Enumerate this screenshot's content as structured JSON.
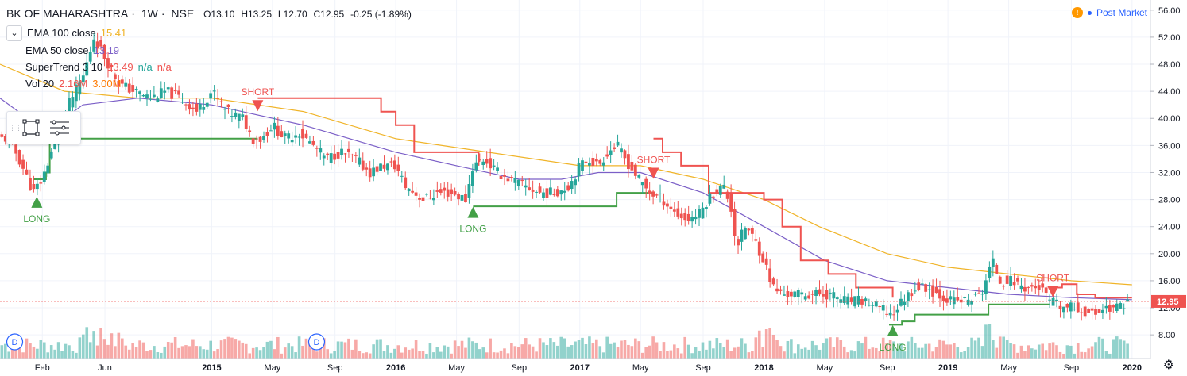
{
  "header": {
    "symbol": "BK OF MAHARASHTRA",
    "interval": "1W",
    "exchange": "NSE",
    "open": "O13.10",
    "high": "H13.25",
    "low": "L12.70",
    "close": "C12.95",
    "change": "-0.25 (-1.89%)"
  },
  "indicators": [
    {
      "name": "EMA 100 close",
      "value": "15.41",
      "color": "#f0b429"
    },
    {
      "name": "EMA 50 close",
      "value": "13.19",
      "color": "#7b5fc7"
    },
    {
      "name": "SuperTrend 3 10",
      "value": "13.49",
      "extra1": "n/a",
      "extra2": "n/a",
      "value_color": "#ef5350",
      "extra1_color": "#26a69a",
      "extra2_color": "#ef5350"
    },
    {
      "name": "Vol 20",
      "value": "2.16M",
      "extra1": "3.00M",
      "value_color": "#ef5350",
      "extra1_color": "#ff7a00"
    }
  ],
  "post_market": {
    "badge": "!",
    "label": "Post Market"
  },
  "price_tag": {
    "label": "12.95"
  },
  "icons": {
    "collapse": "chevron-down-icon",
    "rect_tool": "rectangle-icon",
    "lines_tool": "lines-icon",
    "settings": "gear-icon",
    "dividend": "dividend-icon"
  },
  "colors": {
    "up": "#26a69a",
    "down": "#ef5350",
    "ema100": "#f0b429",
    "ema50": "#7b5fc7",
    "supertrend_down": "#ef5350",
    "supertrend_up": "#43a047",
    "price_line": "#ef5350"
  },
  "chart_data": {
    "type": "candlestick",
    "y_axis_ticks": [
      "56.00",
      "52.00",
      "48.00",
      "44.00",
      "40.00",
      "36.00",
      "32.00",
      "28.00",
      "24.00",
      "20.00",
      "16.00",
      "12.00",
      "8.00"
    ],
    "y_axis_values": [
      56,
      52,
      48,
      44,
      40,
      36,
      32,
      28,
      24,
      20,
      16,
      12,
      8
    ],
    "ylim": [
      4.5,
      57.5
    ],
    "x_axis_labels": [
      "Feb",
      "Jun",
      "2015",
      "May",
      "Sep",
      "2016",
      "May",
      "Sep",
      "2017",
      "May",
      "Sep",
      "2018",
      "May",
      "Sep",
      "2019",
      "May",
      "Sep",
      "2020"
    ],
    "x_axis_times": [
      2014.08,
      2014.42,
      2015.0,
      2015.33,
      2015.67,
      2016.0,
      2016.33,
      2016.67,
      2017.0,
      2017.33,
      2017.67,
      2018.0,
      2018.33,
      2018.67,
      2019.0,
      2019.33,
      2019.67,
      2020.0
    ],
    "xlim": [
      2013.85,
      2020.1
    ],
    "close_path": [
      [
        2013.9,
        37
      ],
      [
        2013.97,
        33
      ],
      [
        2014.03,
        29
      ],
      [
        2014.08,
        31
      ],
      [
        2014.14,
        36
      ],
      [
        2014.22,
        42
      ],
      [
        2014.3,
        46
      ],
      [
        2014.36,
        52
      ],
      [
        2014.42,
        49
      ],
      [
        2014.5,
        45
      ],
      [
        2014.58,
        44
      ],
      [
        2014.67,
        43
      ],
      [
        2014.75,
        44
      ],
      [
        2014.83,
        43
      ],
      [
        2014.92,
        41
      ],
      [
        2015.0,
        44
      ],
      [
        2015.08,
        41
      ],
      [
        2015.17,
        40
      ],
      [
        2015.22,
        37
      ],
      [
        2015.27,
        37
      ],
      [
        2015.33,
        39
      ],
      [
        2015.4,
        37
      ],
      [
        2015.47,
        38
      ],
      [
        2015.55,
        36
      ],
      [
        2015.62,
        34
      ],
      [
        2015.7,
        35
      ],
      [
        2015.78,
        34
      ],
      [
        2015.86,
        32
      ],
      [
        2015.93,
        33
      ],
      [
        2016.0,
        33
      ],
      [
        2016.05,
        30
      ],
      [
        2016.1,
        29
      ],
      [
        2016.15,
        28
      ],
      [
        2016.22,
        29
      ],
      [
        2016.3,
        29
      ],
      [
        2016.38,
        28
      ],
      [
        2016.42,
        33
      ],
      [
        2016.48,
        34
      ],
      [
        2016.55,
        32
      ],
      [
        2016.62,
        31
      ],
      [
        2016.7,
        30
      ],
      [
        2016.78,
        29
      ],
      [
        2016.86,
        29
      ],
      [
        2016.94,
        30
      ],
      [
        2017.0,
        33
      ],
      [
        2017.05,
        34
      ],
      [
        2017.1,
        33
      ],
      [
        2017.15,
        35
      ],
      [
        2017.2,
        36
      ],
      [
        2017.27,
        33
      ],
      [
        2017.32,
        31
      ],
      [
        2017.38,
        29
      ],
      [
        2017.45,
        28
      ],
      [
        2017.52,
        26
      ],
      [
        2017.58,
        25
      ],
      [
        2017.65,
        26
      ],
      [
        2017.72,
        29
      ],
      [
        2017.78,
        30
      ],
      [
        2017.82,
        27
      ],
      [
        2017.85,
        21
      ],
      [
        2017.9,
        24
      ],
      [
        2017.95,
        22
      ],
      [
        2018.0,
        19
      ],
      [
        2018.05,
        15
      ],
      [
        2018.1,
        14
      ],
      [
        2018.18,
        14
      ],
      [
        2018.27,
        14
      ],
      [
        2018.35,
        14
      ],
      [
        2018.45,
        13
      ],
      [
        2018.55,
        13
      ],
      [
        2018.62,
        12
      ],
      [
        2018.7,
        11
      ],
      [
        2018.75,
        13
      ],
      [
        2018.82,
        15
      ],
      [
        2018.88,
        15
      ],
      [
        2018.95,
        14
      ],
      [
        2019.02,
        13
      ],
      [
        2019.1,
        13
      ],
      [
        2019.18,
        14
      ],
      [
        2019.24,
        19
      ],
      [
        2019.28,
        16
      ],
      [
        2019.35,
        16
      ],
      [
        2019.42,
        15
      ],
      [
        2019.5,
        15
      ],
      [
        2019.55,
        13
      ],
      [
        2019.62,
        12
      ],
      [
        2019.7,
        12
      ],
      [
        2019.78,
        11
      ],
      [
        2019.85,
        12
      ],
      [
        2019.92,
        12
      ],
      [
        2019.97,
        13
      ]
    ],
    "ema100_path": [
      [
        2013.85,
        48
      ],
      [
        2014.2,
        44
      ],
      [
        2014.6,
        43
      ],
      [
        2015.0,
        43
      ],
      [
        2015.5,
        41
      ],
      [
        2016.0,
        37
      ],
      [
        2016.5,
        35
      ],
      [
        2017.0,
        33
      ],
      [
        2017.33,
        33
      ],
      [
        2017.67,
        31
      ],
      [
        2018.0,
        28
      ],
      [
        2018.3,
        24
      ],
      [
        2018.67,
        20
      ],
      [
        2019.0,
        18
      ],
      [
        2019.33,
        17
      ],
      [
        2019.67,
        16
      ],
      [
        2020.0,
        15.4
      ]
    ],
    "ema50_path": [
      [
        2013.85,
        43
      ],
      [
        2014.1,
        38
      ],
      [
        2014.3,
        42
      ],
      [
        2014.6,
        43
      ],
      [
        2015.0,
        42
      ],
      [
        2015.5,
        39
      ],
      [
        2016.0,
        35
      ],
      [
        2016.33,
        33
      ],
      [
        2016.67,
        31
      ],
      [
        2016.9,
        31
      ],
      [
        2017.1,
        32
      ],
      [
        2017.33,
        32
      ],
      [
        2017.67,
        29
      ],
      [
        2018.0,
        24
      ],
      [
        2018.33,
        19
      ],
      [
        2018.67,
        16
      ],
      [
        2019.0,
        15
      ],
      [
        2019.33,
        14
      ],
      [
        2019.67,
        13.5
      ],
      [
        2020.0,
        13.2
      ]
    ],
    "supertrend_segments": [
      {
        "trend": "up",
        "path": [
          [
            2014.03,
            31
          ],
          [
            2014.08,
            31
          ],
          [
            2014.1,
            32
          ],
          [
            2014.12,
            37
          ],
          [
            2015.25,
            37
          ]
        ]
      },
      {
        "trend": "down",
        "path": [
          [
            2015.25,
            43
          ],
          [
            2015.9,
            43
          ],
          [
            2015.92,
            41
          ],
          [
            2016.0,
            39
          ],
          [
            2016.1,
            35
          ],
          [
            2016.4,
            35
          ],
          [
            2016.45,
            33
          ]
        ]
      },
      {
        "trend": "up",
        "path": [
          [
            2016.42,
            27
          ],
          [
            2017.0,
            27
          ],
          [
            2017.15,
            27
          ],
          [
            2017.2,
            29
          ],
          [
            2017.4,
            29
          ]
        ]
      },
      {
        "trend": "down",
        "path": [
          [
            2017.4,
            37
          ],
          [
            2017.45,
            35
          ],
          [
            2017.55,
            33
          ],
          [
            2017.7,
            29
          ],
          [
            2018.0,
            28
          ],
          [
            2018.1,
            24
          ],
          [
            2018.2,
            19
          ],
          [
            2018.35,
            17
          ],
          [
            2018.5,
            15
          ],
          [
            2018.7,
            13.5
          ]
        ]
      },
      {
        "trend": "up",
        "path": [
          [
            2018.68,
            9.5
          ],
          [
            2018.75,
            10
          ],
          [
            2018.82,
            11
          ],
          [
            2019.2,
            11
          ],
          [
            2019.22,
            12.5
          ],
          [
            2019.55,
            12.5
          ]
        ]
      },
      {
        "trend": "down",
        "path": [
          [
            2019.55,
            15
          ],
          [
            2019.62,
            15.5
          ],
          [
            2019.7,
            14
          ],
          [
            2019.8,
            13.5
          ],
          [
            2020.0,
            13.5
          ]
        ]
      }
    ],
    "signals": [
      {
        "type": "LONG",
        "x": 2014.05,
        "y": 27.5
      },
      {
        "type": "SHORT",
        "x": 2015.25,
        "y": 42
      },
      {
        "type": "LONG",
        "x": 2016.42,
        "y": 26
      },
      {
        "type": "SHORT",
        "x": 2017.4,
        "y": 32
      },
      {
        "type": "LONG",
        "x": 2018.7,
        "y": 8.5
      },
      {
        "type": "SHORT",
        "x": 2019.57,
        "y": 14.5
      }
    ],
    "dividends": [
      {
        "label": "D",
        "x": 2013.93
      },
      {
        "label": "D",
        "x": 2015.57
      }
    ],
    "last_price": 12.95
  }
}
